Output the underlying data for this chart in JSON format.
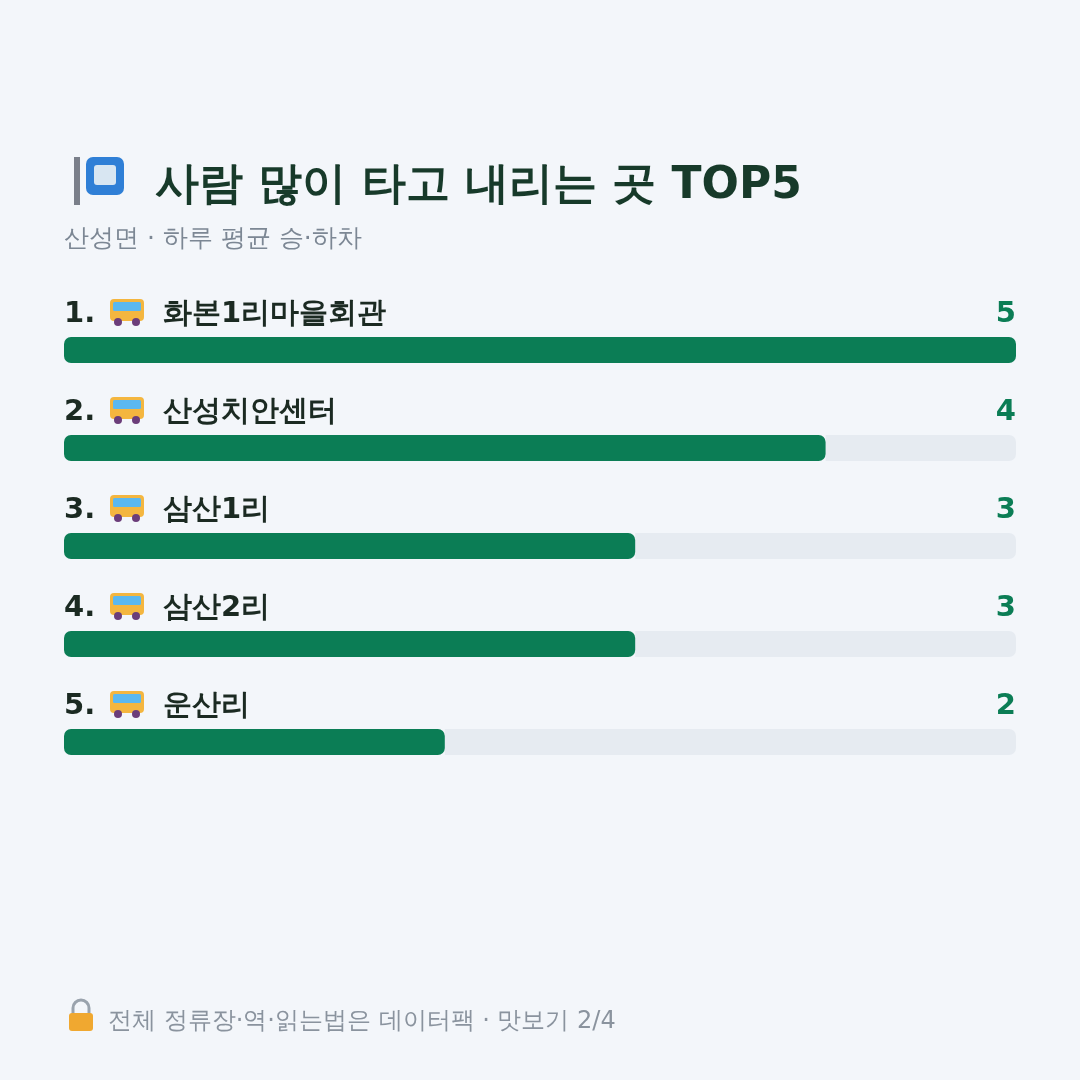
{
  "chart_data": {
    "type": "bar",
    "orientation": "horizontal",
    "title": "사람 많이 타고 내리는 곳 TOP5",
    "subtitle": "산성면 · 하루 평균 승·하차",
    "categories": [
      "1. 화본1리마을회관",
      "2. 산성치안센터",
      "3. 삼산1리",
      "4. 삼산2리",
      "5. 운산리"
    ],
    "values": [
      5,
      4,
      3,
      3,
      2
    ],
    "color": "#0b7d55",
    "xlim": [
      0,
      5
    ],
    "data_labels": true,
    "annotations": [
      "전체 정류장·역·읽는법은 데이터팩 · 맛보기 2/4"
    ]
  }
}
